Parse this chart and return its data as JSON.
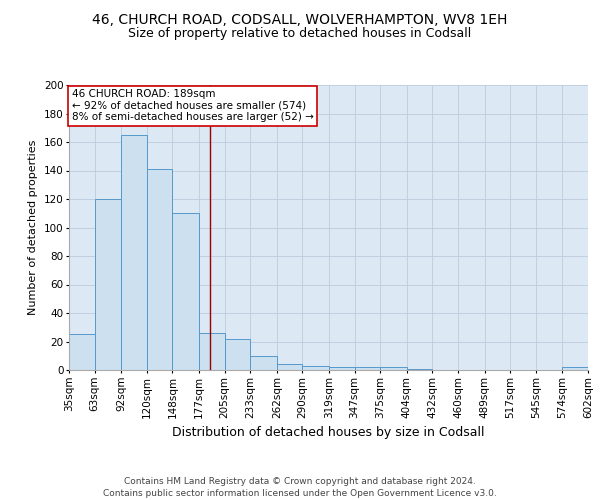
{
  "title1": "46, CHURCH ROAD, CODSALL, WOLVERHAMPTON, WV8 1EH",
  "title2": "Size of property relative to detached houses in Codsall",
  "xlabel": "Distribution of detached houses by size in Codsall",
  "ylabel": "Number of detached properties",
  "bins": [
    35,
    63,
    92,
    120,
    148,
    177,
    205,
    233,
    262,
    290,
    319,
    347,
    375,
    404,
    432,
    460,
    489,
    517,
    545,
    574,
    602
  ],
  "counts": [
    25,
    120,
    165,
    141,
    110,
    26,
    22,
    10,
    4,
    3,
    2,
    2,
    2,
    1,
    0,
    0,
    0,
    0,
    0,
    2
  ],
  "bar_facecolor": "#cce0f0",
  "bar_edgecolor": "#5599cc",
  "property_size": 189,
  "red_line_color": "#990000",
  "annotation_text": "46 CHURCH ROAD: 189sqm\n← 92% of detached houses are smaller (574)\n8% of semi-detached houses are larger (52) →",
  "annotation_box_edgecolor": "#cc0000",
  "annotation_box_facecolor": "#ffffff",
  "ylim": [
    0,
    200
  ],
  "yticks": [
    0,
    20,
    40,
    60,
    80,
    100,
    120,
    140,
    160,
    180,
    200
  ],
  "grid_color": "#bbccdd",
  "background_color": "#dce8f4",
  "footer_text": "Contains HM Land Registry data © Crown copyright and database right 2024.\nContains public sector information licensed under the Open Government Licence v3.0.",
  "title1_fontsize": 10,
  "title2_fontsize": 9,
  "xlabel_fontsize": 9,
  "ylabel_fontsize": 8,
  "tick_fontsize": 7.5,
  "annotation_fontsize": 7.5,
  "footer_fontsize": 6.5
}
